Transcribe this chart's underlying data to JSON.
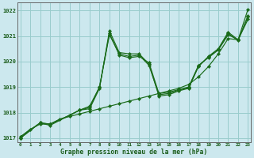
{
  "xlabel": "Graphe pression niveau de la mer (hPa)",
  "background_color": "#cce8ee",
  "grid_color": "#99cccc",
  "line_color": "#1a6b1a",
  "xlim_min": -0.3,
  "xlim_max": 23.3,
  "ylim_min": 1016.85,
  "ylim_max": 1022.3,
  "yticks": [
    1017,
    1018,
    1019,
    1020,
    1021,
    1022
  ],
  "xticks": [
    0,
    1,
    2,
    3,
    4,
    5,
    6,
    7,
    8,
    9,
    10,
    11,
    12,
    13,
    14,
    15,
    16,
    17,
    18,
    19,
    20,
    21,
    22,
    23
  ],
  "series": [
    {
      "x": [
        0,
        1,
        2,
        3,
        4,
        5,
        6,
        7,
        8,
        9,
        10,
        11,
        12,
        13,
        14,
        15,
        16,
        17,
        18,
        19,
        20,
        21,
        22,
        23
      ],
      "y": [
        1017.05,
        1017.35,
        1017.55,
        1017.55,
        1017.75,
        1017.85,
        1017.95,
        1018.05,
        1018.15,
        1018.25,
        1018.35,
        1018.45,
        1018.55,
        1018.65,
        1018.75,
        1018.85,
        1018.95,
        1019.1,
        1019.4,
        1019.8,
        1020.3,
        1020.9,
        1020.85,
        1021.65
      ]
    },
    {
      "x": [
        0,
        2,
        3,
        5,
        6,
        7,
        8,
        9,
        10,
        11,
        12,
        13,
        14,
        15,
        16,
        17,
        18,
        19,
        20,
        21,
        22,
        23
      ],
      "y": [
        1017.05,
        1017.6,
        1017.55,
        1017.9,
        1018.1,
        1018.25,
        1019.0,
        1021.1,
        1020.25,
        1020.15,
        1020.2,
        1019.95,
        1018.75,
        1018.8,
        1018.9,
        1019.0,
        1019.85,
        1020.15,
        1020.45,
        1021.05,
        1020.85,
        1021.75
      ]
    },
    {
      "x": [
        0,
        2,
        3,
        5,
        6,
        7,
        8,
        9,
        10,
        11,
        12,
        13,
        14,
        15,
        16,
        17,
        18,
        19,
        20,
        21,
        22,
        23
      ],
      "y": [
        1017.0,
        1017.6,
        1017.5,
        1017.9,
        1018.1,
        1018.15,
        1018.95,
        1021.2,
        1020.35,
        1020.3,
        1020.3,
        1019.9,
        1018.65,
        1018.7,
        1018.85,
        1018.95,
        1019.8,
        1020.2,
        1020.5,
        1021.15,
        1020.85,
        1022.05
      ]
    },
    {
      "x": [
        0,
        2,
        3,
        5,
        6,
        7,
        8,
        9,
        10,
        11,
        12,
        13,
        14,
        15,
        16,
        17,
        18,
        19,
        20,
        21,
        22,
        23
      ],
      "y": [
        1017.0,
        1017.6,
        1017.55,
        1017.9,
        1018.1,
        1018.2,
        1019.0,
        1021.05,
        1020.3,
        1020.2,
        1020.25,
        1019.85,
        1018.7,
        1018.75,
        1018.88,
        1018.98,
        1019.83,
        1020.18,
        1020.48,
        1021.1,
        1020.82,
        1021.8
      ]
    }
  ]
}
